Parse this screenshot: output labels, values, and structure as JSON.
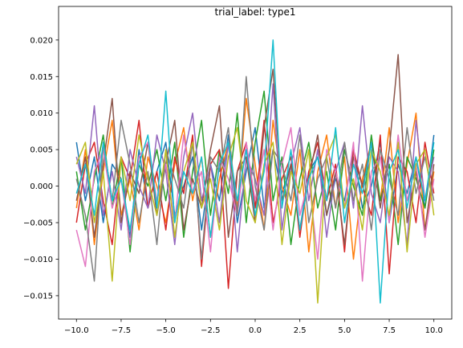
{
  "chart_data": {
    "type": "line",
    "title": "trial_label: type1",
    "x": [
      -10,
      -9.5,
      -9,
      -8.5,
      -8,
      -7.5,
      -7,
      -6.5,
      -6,
      -5.5,
      -5,
      -4.5,
      -4,
      -3.5,
      -3,
      -2.5,
      -2,
      -1.5,
      -1,
      -0.5,
      0,
      0.5,
      1,
      1.5,
      2,
      2.5,
      3,
      3.5,
      4,
      4.5,
      5,
      5.5,
      6,
      6.5,
      7,
      7.5,
      8,
      8.5,
      9,
      9.5,
      10
    ],
    "xlim": [
      -11,
      11
    ],
    "xticks": [
      {
        "value": -10,
        "label": "−10.0"
      },
      {
        "value": -7.5,
        "label": "−7.5"
      },
      {
        "value": -5,
        "label": "−5.0"
      },
      {
        "value": -2.5,
        "label": "−2.5"
      },
      {
        "value": 0,
        "label": "0.0"
      },
      {
        "value": 2.5,
        "label": "2.5"
      },
      {
        "value": 5,
        "label": "5.0"
      },
      {
        "value": 7.5,
        "label": "7.5"
      },
      {
        "value": 10,
        "label": "10.0"
      }
    ],
    "ylim": [
      -0.0182,
      0.0246
    ],
    "yticks": [
      {
        "value": -0.015,
        "label": "−0.015"
      },
      {
        "value": -0.01,
        "label": "−0.010"
      },
      {
        "value": -0.005,
        "label": "−0.005"
      },
      {
        "value": 0,
        "label": "0.000"
      },
      {
        "value": 0.005,
        "label": "0.005"
      },
      {
        "value": 0.01,
        "label": "0.010"
      },
      {
        "value": 0.015,
        "label": "0.015"
      },
      {
        "value": 0.02,
        "label": "0.020"
      }
    ],
    "series": [
      {
        "color": "#1f77b4",
        "values": [
          0.006,
          -0.002,
          0.004,
          -0.005,
          0.003,
          0.001,
          -0.007,
          0.005,
          -0.003,
          0.002,
          0.006,
          -0.004,
          0.0,
          0.004,
          -0.006,
          0.003,
          -0.002,
          0.007,
          -0.005,
          0.002,
          0.008,
          -0.003,
          0.005,
          -0.001,
          0.003,
          -0.006,
          0.002,
          0.004,
          -0.004,
          0.001,
          -0.002,
          0.005,
          -0.003,
          0.0,
          0.006,
          -0.005,
          0.003,
          -0.001,
          0.004,
          -0.003,
          0.007
        ]
      },
      {
        "color": "#ff7f0e",
        "values": [
          -0.003,
          0.005,
          -0.008,
          0.002,
          0.009,
          -0.004,
          0.001,
          -0.006,
          0.004,
          0.0,
          -0.005,
          0.003,
          0.008,
          -0.002,
          0.004,
          -0.007,
          0.001,
          0.006,
          -0.003,
          0.012,
          0.003,
          -0.006,
          0.009,
          0.0,
          -0.004,
          0.005,
          -0.009,
          0.002,
          0.007,
          -0.003,
          0.004,
          -0.01,
          0.001,
          0.006,
          -0.002,
          0.008,
          -0.005,
          0.003,
          0.01,
          -0.006,
          0.002
        ]
      },
      {
        "color": "#2ca02c",
        "values": [
          0.002,
          -0.006,
          0.001,
          0.007,
          -0.003,
          0.004,
          -0.009,
          0.003,
          0.0,
          0.005,
          -0.002,
          0.006,
          -0.007,
          0.002,
          0.009,
          -0.004,
          0.005,
          -0.001,
          0.01,
          -0.005,
          0.006,
          0.013,
          -0.002,
          0.004,
          -0.008,
          0.001,
          0.006,
          -0.003,
          0.002,
          -0.006,
          0.005,
          0.0,
          -0.004,
          0.007,
          -0.002,
          0.003,
          -0.008,
          0.004,
          0.001,
          -0.003,
          0.005
        ]
      },
      {
        "color": "#d62728",
        "values": [
          -0.005,
          0.003,
          0.006,
          -0.002,
          -0.008,
          0.004,
          0.001,
          0.009,
          -0.003,
          0.002,
          -0.006,
          0.004,
          -0.001,
          0.007,
          -0.011,
          0.003,
          0.005,
          -0.014,
          0.002,
          0.006,
          -0.003,
          0.009,
          -0.005,
          0.001,
          0.004,
          -0.007,
          0.002,
          0.006,
          -0.002,
          0.003,
          -0.009,
          0.005,
          0.0,
          -0.004,
          0.007,
          -0.012,
          0.004,
          0.002,
          -0.005,
          0.006,
          -0.001
        ]
      },
      {
        "color": "#9467bd",
        "values": [
          0.004,
          -0.001,
          0.011,
          -0.004,
          0.002,
          -0.006,
          0.005,
          0.0,
          -0.003,
          0.007,
          0.002,
          -0.008,
          0.004,
          0.01,
          -0.002,
          0.003,
          -0.005,
          0.006,
          -0.009,
          0.004,
          0.001,
          -0.004,
          0.014,
          -0.006,
          0.003,
          0.008,
          -0.002,
          0.005,
          -0.007,
          0.002,
          0.006,
          -0.003,
          0.011,
          -0.001,
          -0.005,
          0.004,
          0.002,
          -0.008,
          0.009,
          -0.002,
          0.004
        ]
      },
      {
        "color": "#8c564b",
        "values": [
          -0.002,
          0.004,
          -0.007,
          0.003,
          0.012,
          -0.005,
          0.002,
          -0.001,
          0.006,
          -0.004,
          0.003,
          0.009,
          -0.006,
          0.001,
          -0.003,
          0.005,
          0.011,
          -0.007,
          0.002,
          0.004,
          -0.005,
          0.008,
          0.016,
          -0.002,
          0.003,
          -0.006,
          0.001,
          0.007,
          -0.004,
          0.002,
          -0.008,
          0.004,
          0.0,
          0.006,
          -0.003,
          0.005,
          0.018,
          -0.005,
          0.002,
          -0.006,
          0.003
        ]
      },
      {
        "color": "#e377c2",
        "values": [
          -0.006,
          -0.011,
          0.002,
          0.005,
          -0.003,
          0.001,
          -0.008,
          0.004,
          0.006,
          -0.002,
          0.003,
          -0.005,
          0.007,
          -0.001,
          0.002,
          -0.009,
          0.004,
          0.001,
          -0.004,
          0.006,
          -0.002,
          0.005,
          -0.006,
          0.003,
          0.008,
          -0.004,
          0.001,
          -0.01,
          0.005,
          0.002,
          -0.003,
          0.006,
          -0.013,
          0.002,
          0.004,
          -0.005,
          0.007,
          -0.002,
          0.003,
          -0.007,
          0.001
        ]
      },
      {
        "color": "#7f7f7f",
        "values": [
          0.001,
          -0.004,
          -0.013,
          0.006,
          -0.002,
          0.009,
          0.003,
          -0.005,
          0.002,
          -0.008,
          0.005,
          0.001,
          -0.003,
          0.006,
          -0.01,
          0.004,
          0.002,
          0.008,
          -0.004,
          0.015,
          0.0,
          -0.006,
          0.005,
          0.003,
          -0.002,
          0.007,
          -0.005,
          0.001,
          0.004,
          -0.003,
          0.006,
          -0.002,
          0.003,
          -0.006,
          0.005,
          0.001,
          -0.004,
          0.008,
          -0.001,
          0.004,
          -0.002
        ]
      },
      {
        "color": "#bcbd22",
        "values": [
          0.003,
          0.006,
          -0.005,
          0.002,
          -0.013,
          0.004,
          -0.002,
          0.007,
          0.001,
          -0.004,
          0.005,
          -0.007,
          0.002,
          0.006,
          -0.003,
          0.001,
          -0.006,
          0.004,
          0.008,
          -0.002,
          -0.005,
          0.003,
          0.006,
          -0.008,
          0.002,
          -0.001,
          0.005,
          -0.016,
          0.004,
          0.007,
          -0.003,
          0.001,
          -0.006,
          0.005,
          0.002,
          -0.004,
          0.006,
          -0.009,
          0.003,
          0.005,
          -0.004
        ]
      },
      {
        "color": "#17becf",
        "values": [
          -0.001,
          0.003,
          -0.004,
          0.006,
          -0.002,
          0.001,
          -0.006,
          0.003,
          0.007,
          -0.003,
          0.013,
          -0.005,
          0.002,
          -0.001,
          0.004,
          -0.007,
          0.003,
          0.006,
          -0.002,
          0.005,
          -0.004,
          0.002,
          0.02,
          -0.003,
          0.005,
          -0.006,
          0.001,
          0.004,
          -0.002,
          0.008,
          -0.005,
          0.003,
          -0.001,
          0.006,
          -0.016,
          0.002,
          0.005,
          -0.003,
          0.004,
          -0.002,
          0.006
        ]
      }
    ]
  }
}
